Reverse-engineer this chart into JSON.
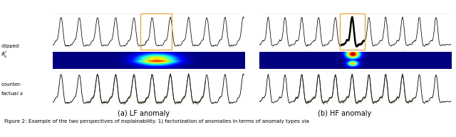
{
  "figure_width": 6.4,
  "figure_height": 1.93,
  "dpi": 100,
  "background_color": "#ffffff",
  "caption_lf": "(a) LF anomaly",
  "caption_hf": "(b) HF anomaly",
  "caption_fontsize": 7.0,
  "figure_caption": "Figure 2: Example of the two perspectives of explainability. 1) factorization of anomalies in terms of anomaly types via",
  "figure_caption_fontsize": 5.2,
  "label_fontsize": 5.5,
  "highlight_color": "#e8a040",
  "heatmap_cmap": "jet"
}
